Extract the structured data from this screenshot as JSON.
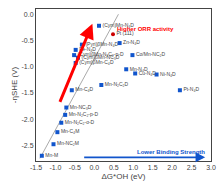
{
  "chart_data": {
    "type": "scatter",
    "title": "",
    "x_label": "ΔG*OH (eV)",
    "y_label": "-ηSHE (V)",
    "xlim": [
      -1.5,
      3.0
    ],
    "ylim": [
      -2.8,
      0.1
    ],
    "xticks": [
      -1.5,
      {
        "value": -1,
        "label": "-1.0"
      },
      -0.5,
      {
        "value": 0,
        "label": "0.0"
      },
      0.5,
      {
        "value": 1,
        "label": "1.0"
      },
      1.5,
      {
        "value": 2,
        "label": "2.0"
      },
      2.5,
      {
        "value": 3,
        "label": "3.0"
      }
    ],
    "yticks": [
      {
        "value": 0,
        "label": "0.0"
      },
      -0.5,
      {
        "value": -1,
        "label": "-1.0"
      },
      -1.5,
      {
        "value": -2,
        "label": "-2.0"
      },
      -2.5
    ],
    "grid": false,
    "points": [
      {
        "x": -1.35,
        "y": -2.7,
        "label": "Mn-M",
        "color": "#1155cc",
        "marker": "square"
      },
      {
        "x": -1.05,
        "y": -2.48,
        "label": "Mn-NC₂M",
        "color": "#1155cc",
        "marker": "square"
      },
      {
        "x": -0.95,
        "y": -2.25,
        "label": "Mn-C₄M",
        "color": "#1155cc",
        "marker": "square"
      },
      {
        "x": -0.85,
        "y": -2.07,
        "label": "Mn-N₂C₂-o-D",
        "color": "#1155cc",
        "marker": "square"
      },
      {
        "x": -0.75,
        "y": -1.92,
        "label": "Mn-N₂C₂-p-D",
        "color": "#1155cc",
        "marker": "square"
      },
      {
        "x": -0.72,
        "y": -1.78,
        "label": "Mn-NC₃D",
        "color": "#1155cc",
        "marker": "square"
      },
      {
        "x": -0.58,
        "y": -1.45,
        "label": "Mn-C₄D",
        "color": "#1155cc",
        "marker": "square"
      },
      {
        "x": -0.52,
        "y": -0.78,
        "label": "(Cym)βMn-N₂C₂-p-D",
        "color": "#1155cc",
        "marker": "square"
      },
      {
        "x": -0.48,
        "y": -0.93,
        "label": "(Cym)βMn-C₄D",
        "color": "#1155cc",
        "marker": "square"
      },
      {
        "x": -0.48,
        "y": -0.68,
        "label": "Fe-N₄D",
        "color": "#1155cc",
        "marker": "square"
      },
      {
        "x": -0.42,
        "y": -0.83,
        "label": "(Cym)βMn-NC₃D",
        "color": "#1155cc",
        "marker": "square"
      },
      {
        "x": -0.32,
        "y": -0.58,
        "label": "(Pyri)βMn-N₄D",
        "color": "#1155cc",
        "marker": "square"
      },
      {
        "x": 0.18,
        "y": -1.35,
        "label": "Mn-N₂C₂D",
        "color": "#1155cc",
        "marker": "square"
      },
      {
        "x": 0.48,
        "y": -0.38,
        "label": "Pt (111)",
        "color": "#cc0000",
        "marker": "circle"
      },
      {
        "x": 0.12,
        "y": -0.22,
        "label": "(Cym)Mn-N₄D",
        "color": "#1155cc",
        "marker": "square"
      },
      {
        "x": 0.65,
        "y": -0.55,
        "label": "Zn-N₄D",
        "color": "#1155cc",
        "marker": "square"
      },
      {
        "x": 0.82,
        "y": -1.05,
        "label": "Mn-N₄D",
        "color": "#1155cc",
        "marker": "square"
      },
      {
        "x": 1.05,
        "y": -1.13,
        "label": "Cu-N₄D",
        "color": "#1155cc",
        "marker": "square"
      },
      {
        "x": 0.98,
        "y": -0.78,
        "label": "Co/Mn-NC₂D",
        "color": "#1155cc",
        "marker": "square"
      },
      {
        "x": 1.6,
        "y": -1.15,
        "label": "Ni-N₄D",
        "color": "#1155cc",
        "marker": "square"
      },
      {
        "x": 2.2,
        "y": -1.45,
        "label": "Pt-N₄D",
        "color": "#1155cc",
        "marker": "square"
      }
    ],
    "reference_line": {
      "x": [
        -1.4,
        0.62
      ],
      "y": [
        -2.75,
        0.0
      ],
      "color": "#aaaaaa"
    },
    "arrows": [
      {
        "from": [
          -0.9,
          -1.7
        ],
        "to": [
          -0.05,
          -0.18
        ],
        "color": "red"
      },
      {
        "from": [
          -0.3,
          -2.73
        ],
        "to": [
          2.85,
          -2.73
        ],
        "color": "#1155cc"
      }
    ],
    "annotations": [
      {
        "text": "Higher ORR activity",
        "x": 0.52,
        "y": -0.28,
        "color": "red"
      },
      {
        "text": "Lower Binding Strength",
        "x": 1.05,
        "y": -2.62,
        "color": "#1155cc"
      }
    ]
  }
}
